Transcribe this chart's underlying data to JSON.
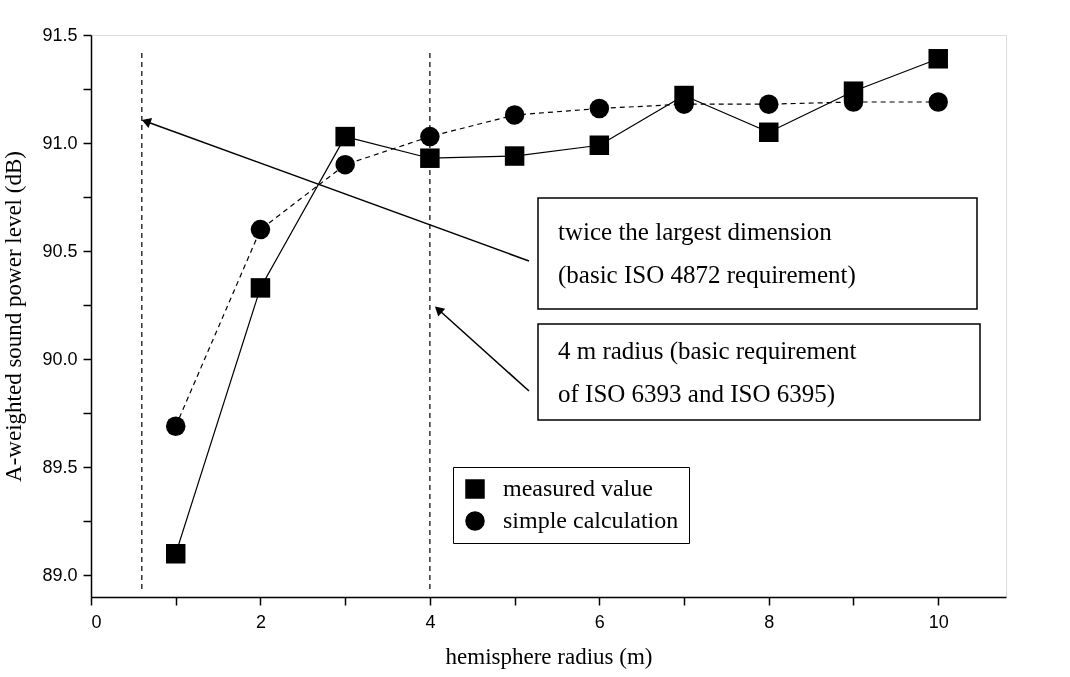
{
  "chart_data": {
    "type": "line",
    "xlabel": "hemisphere radius (m)",
    "ylabel": "A-weighted sound power level (dB)",
    "x": [
      1,
      2,
      3,
      4,
      5,
      6,
      7,
      8,
      9,
      10
    ],
    "series": [
      {
        "name": "measured value",
        "color": "#000000",
        "marker": "square",
        "line_style": "solid",
        "values": [
          89.1,
          90.33,
          91.03,
          90.93,
          90.94,
          90.99,
          91.22,
          91.05,
          91.24,
          91.39
        ]
      },
      {
        "name": "simple calculation",
        "color": "#000000",
        "marker": "circle",
        "line_style": "dashed",
        "values": [
          89.69,
          90.6,
          90.9,
          91.03,
          91.13,
          91.16,
          91.18,
          91.18,
          91.19,
          91.19
        ]
      }
    ],
    "xlim": [
      0,
      10.8
    ],
    "xticks": [
      0,
      {
        "value": 1,
        "label": null
      },
      2,
      {
        "value": 3,
        "label": null
      },
      4,
      {
        "value": 5,
        "label": null
      },
      6,
      {
        "value": 7,
        "label": null
      },
      8,
      {
        "value": 9,
        "label": null
      },
      10
    ],
    "ylim": [
      88.9,
      91.5
    ],
    "yticks": [
      {
        "value": 89.0,
        "label": "89.0"
      },
      {
        "value": 89.25,
        "label": null
      },
      89.5,
      {
        "value": 89.75,
        "label": null
      },
      {
        "value": 90.0,
        "label": "90.0"
      },
      {
        "value": 90.25,
        "label": null
      },
      90.5,
      {
        "value": 90.75,
        "label": null
      },
      {
        "value": 91.0,
        "label": "91.0"
      },
      {
        "value": 91.25,
        "label": null
      },
      91.5
    ],
    "ref_lines": [
      {
        "axis": "x",
        "value": 0.6,
        "line_style": "dashed",
        "color": "#000000"
      },
      {
        "axis": "x",
        "value": 4,
        "line_style": "dashed",
        "color": "#000000"
      }
    ],
    "annotations": [
      {
        "text": "twice the largest dimension\n(basic ISO 4872 requirement)",
        "x": 0.65,
        "y": 91.1
      },
      {
        "text": "4 m radius (basic requirement\nof ISO 6393 and ISO 6395)",
        "x": 4.1,
        "y": 90.23
      }
    ],
    "grid": false,
    "legend": "bottom right"
  }
}
